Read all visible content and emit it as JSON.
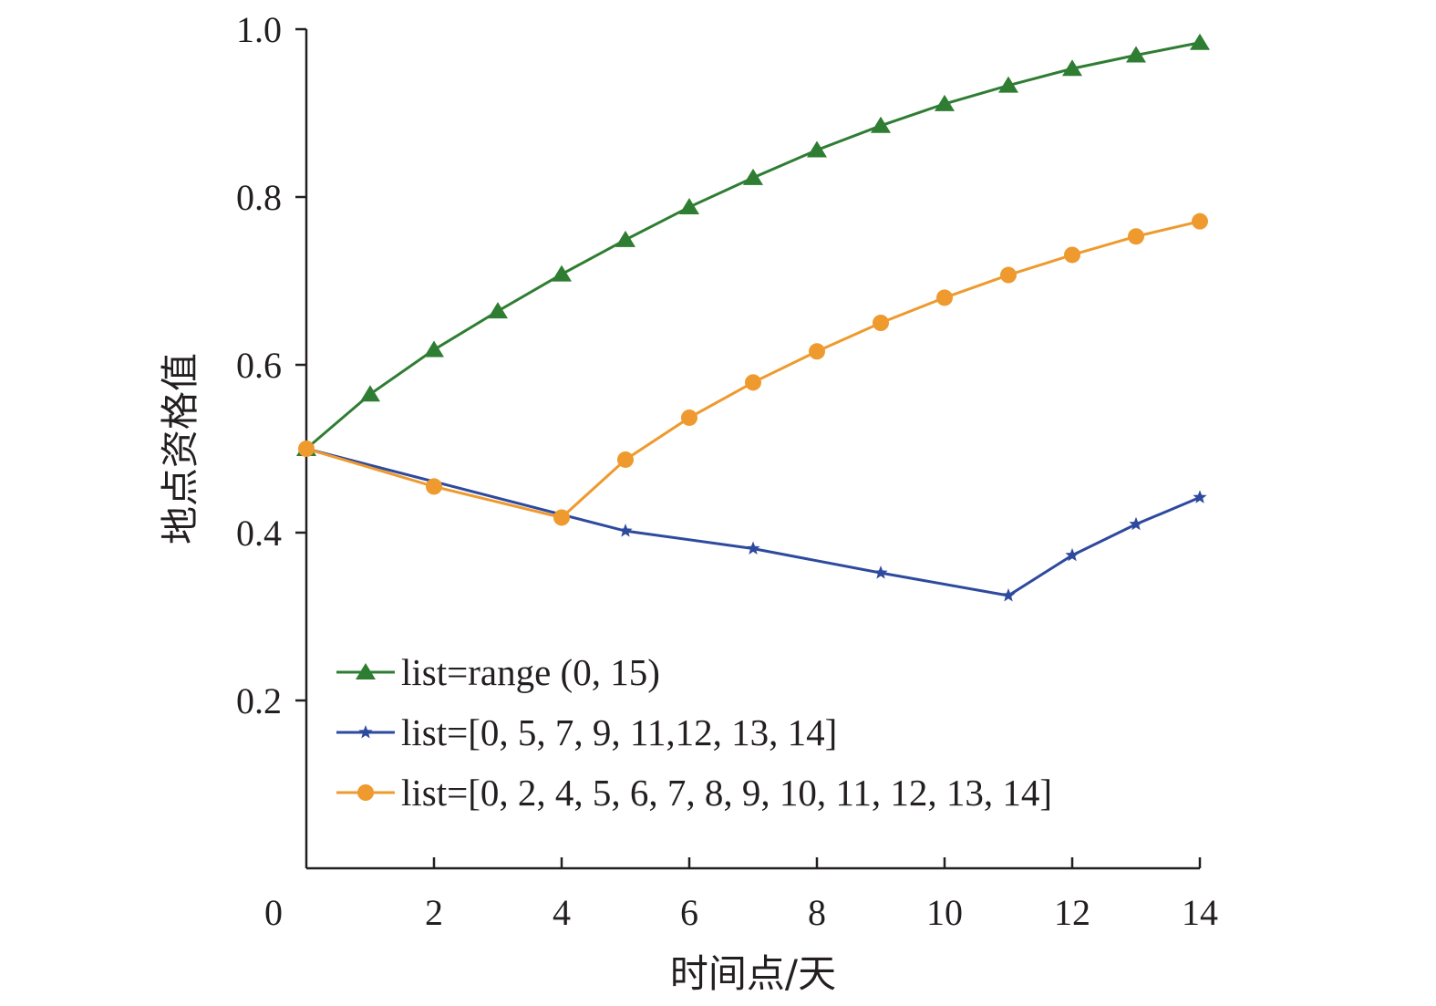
{
  "chart_data": {
    "type": "line",
    "xlabel": "时间点/天",
    "ylabel": "地点资格值",
    "xlim": [
      0,
      14
    ],
    "ylim": [
      0,
      1.0
    ],
    "x_ticks": [
      0,
      2,
      4,
      6,
      8,
      10,
      12,
      14
    ],
    "x_tick_labels": [
      "0",
      "2",
      "4",
      "6",
      "8",
      "10",
      "12",
      "14"
    ],
    "y_ticks": [
      0.2,
      0.4,
      0.6,
      0.8,
      1.0
    ],
    "y_tick_labels": [
      "0.2",
      "0.4",
      "0.6",
      "0.8",
      "1.0"
    ],
    "grid": false,
    "legend_position": "bottom-left",
    "series": [
      {
        "name": "list=range (0, 15)",
        "color": "#2e7d32",
        "marker": "triangle",
        "x": [
          0,
          1,
          2,
          3,
          4,
          5,
          6,
          7,
          8,
          9,
          10,
          11,
          12,
          13,
          14
        ],
        "values": [
          0.5,
          0.565,
          0.618,
          0.664,
          0.708,
          0.749,
          0.788,
          0.823,
          0.856,
          0.885,
          0.911,
          0.933,
          0.953,
          0.969,
          0.984
        ]
      },
      {
        "name": "list=[0, 5, 7, 9, 11,12, 13, 14]",
        "color": "#2e4a9e",
        "marker": "star",
        "x": [
          0,
          5,
          7,
          9,
          11,
          12,
          13,
          14
        ],
        "values": [
          0.5,
          0.402,
          0.381,
          0.352,
          0.325,
          0.373,
          0.41,
          0.442
        ]
      },
      {
        "name": "list=[0, 2, 4, 5, 6, 7, 8, 9, 10, 11, 12, 13, 14]",
        "color": "#ee9a2e",
        "marker": "circle",
        "x": [
          0,
          2,
          4,
          5,
          6,
          7,
          8,
          9,
          10,
          11,
          12,
          13,
          14
        ],
        "values": [
          0.5,
          0.455,
          0.418,
          0.487,
          0.537,
          0.579,
          0.616,
          0.65,
          0.68,
          0.707,
          0.731,
          0.753,
          0.771
        ]
      }
    ]
  }
}
